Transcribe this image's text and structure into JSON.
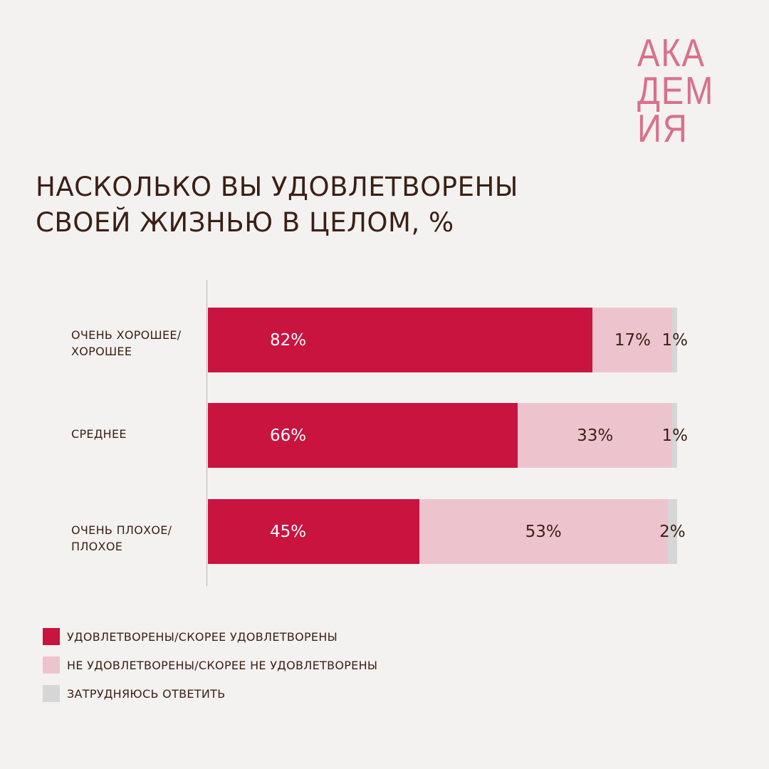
{
  "logo": {
    "lines": [
      "АКА",
      "ДЕМ",
      "ИЯ"
    ]
  },
  "title_lines": [
    "НАСКОЛЬКО ВЫ УДОВЛЕТВОРЕНЫ",
    "СВОЕЙ ЖИЗНЬЮ В ЦЕЛОМ, %"
  ],
  "colors": {
    "satisfied": "#c8143f",
    "dissatisfied": "#edc4ce",
    "hard_to_say": "#d6d6d6"
  },
  "chart_data": {
    "type": "bar",
    "orientation": "horizontal",
    "stacked": true,
    "title": "НАСКОЛЬКО ВЫ УДОВЛЕТВОРЕНЫ СВОЕЙ ЖИЗНЬЮ В ЦЕЛОМ, %",
    "categories": [
      "ОЧЕНЬ ХОРОШЕЕ/\nХОРОШЕЕ",
      "СРЕДНЕЕ",
      "ОЧЕНЬ ПЛОХОЕ/\nПЛОХОЕ"
    ],
    "series": [
      {
        "name": "УДОВЛЕТВОРЕНЫ/СКОРЕЕ УДОВЛЕТВОРЕНЫ",
        "values": [
          82,
          66,
          45
        ],
        "labels": [
          "82%",
          "66%",
          "45%"
        ],
        "color": "#c8143f"
      },
      {
        "name": "НЕ УДОВЛЕТВОРЕНЫ/СКОРЕЕ НЕ УДОВЛЕТВОРЕНЫ",
        "values": [
          17,
          33,
          53
        ],
        "labels": [
          "17%",
          "33%",
          "53%"
        ],
        "color": "#edc4ce"
      },
      {
        "name": "ЗАТРУДНЯЮСЬ ОТВЕТИТЬ",
        "values": [
          1,
          1,
          2
        ],
        "labels": [
          "1%",
          "1%",
          "2%"
        ],
        "color": "#d6d6d6"
      }
    ],
    "xlim": [
      0,
      100
    ],
    "legend_position": "bottom-left",
    "grid": false
  }
}
